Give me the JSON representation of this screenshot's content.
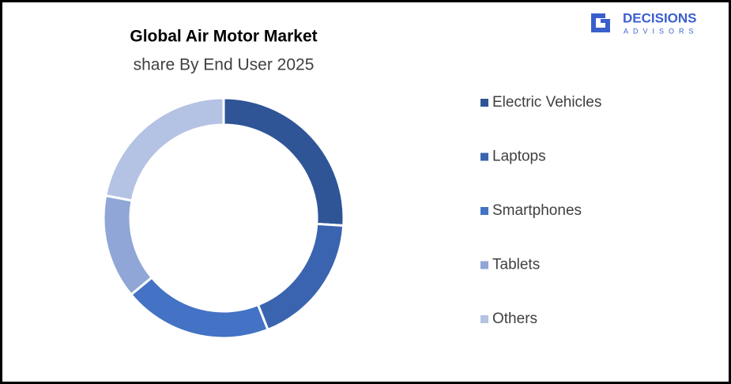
{
  "chart_data": {
    "type": "donut",
    "title": "Global Air Motor Market",
    "subtitle": "share By End User 2025",
    "categories": [
      "Electric Vehicles",
      "Laptops",
      "Smartphones",
      "Tablets",
      "Others"
    ],
    "values": [
      26,
      18,
      20,
      14,
      22
    ],
    "colors": [
      "#2f5597",
      "#3a64b0",
      "#4472c4",
      "#8fa6d6",
      "#b4c2e3"
    ],
    "legend": "right"
  },
  "logo": {
    "name": "DECISIONS",
    "tagline": "ADVISORS"
  }
}
